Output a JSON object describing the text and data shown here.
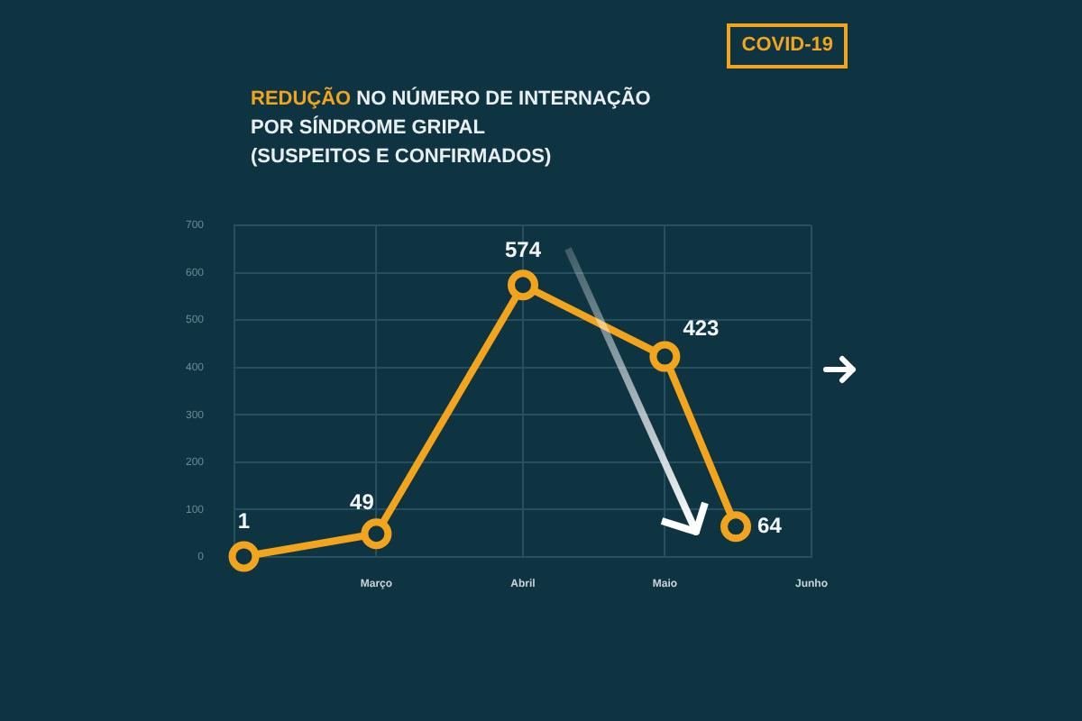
{
  "chart_data": {
    "type": "line",
    "title": "REDUÇÃO NO NÚMERO DE INTERNAÇÃO\nPOR SÍNDROME GRIPAL\n(SUSPEITOS E CONFIRMADOS)",
    "annotations": [
      "COVID-19"
    ],
    "x": [
      "--02-01",
      "--03-01",
      "--04-01",
      "--05-01",
      "--05-16"
    ],
    "values": [
      1,
      49,
      574,
      423,
      64
    ],
    "color": "#f3a41d",
    "xlim": [
      "--01-30",
      "--06-01"
    ],
    "xticks": [
      {
        "value": "--03-01",
        "label": "Março"
      },
      {
        "value": "--04-01",
        "label": "Abril"
      },
      {
        "value": "--05-01",
        "label": "Maio"
      },
      {
        "value": "--06-01",
        "label": "Junho"
      }
    ],
    "ylim": [
      0,
      700
    ],
    "yticks": [
      0,
      100,
      200,
      300,
      400,
      500,
      600,
      700
    ],
    "grid": true,
    "data_labels": true,
    "marker": "circle",
    "line_style": "solid"
  }
}
